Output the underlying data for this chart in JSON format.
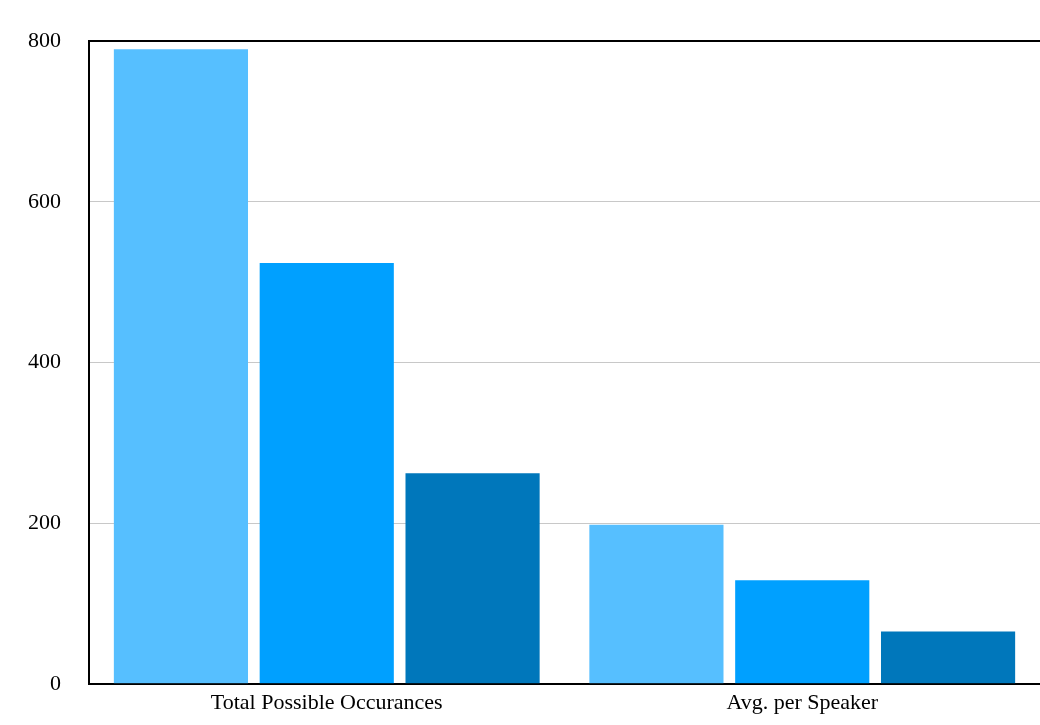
{
  "chart_data": {
    "type": "bar",
    "categories": [
      "Total Possible Occurances",
      "Avg. per Speaker"
    ],
    "series": [
      {
        "color": "#56bfff",
        "values": [
          790,
          198
        ]
      },
      {
        "color": "#00a0ff",
        "values": [
          524,
          129
        ]
      },
      {
        "color": "#0077bb",
        "values": [
          262,
          65
        ]
      }
    ],
    "ylim": [
      0,
      800
    ],
    "yticks": [
      0,
      200,
      400,
      600,
      800
    ],
    "grid": "y",
    "legend": false
  }
}
